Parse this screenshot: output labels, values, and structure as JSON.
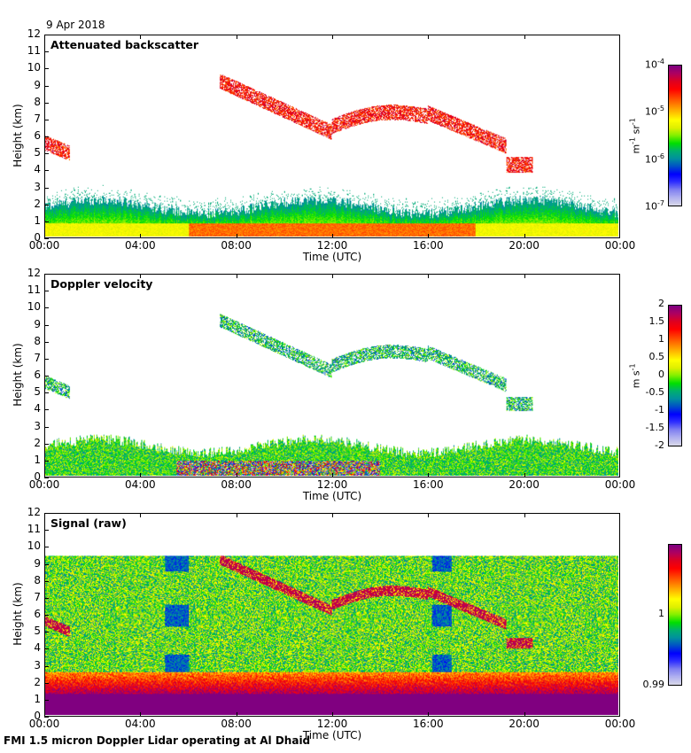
{
  "header": {
    "date": "9 Apr 2018"
  },
  "footer": {
    "caption": "FMI 1.5 micron Doppler Lidar operating at Al Dhaid"
  },
  "colormap": [
    "#d8d8ea",
    "#b0b0f0",
    "#8080f0",
    "#3030ff",
    "#0000ff",
    "#0050c8",
    "#0090a0",
    "#00b070",
    "#00e000",
    "#80f000",
    "#e0f000",
    "#ffff00",
    "#ffc000",
    "#ff8000",
    "#ff4000",
    "#ff0000",
    "#e00020",
    "#b00060",
    "#800080"
  ],
  "chart_data": [
    {
      "type": "heatmap",
      "title": "Attenuated backscatter",
      "xlabel": "Time (UTC)",
      "ylabel": "Height (km)",
      "xlim": [
        "00:00",
        "24:00"
      ],
      "ylim": [
        0,
        12
      ],
      "xticks": [
        "00:00",
        "04:00",
        "08:00",
        "12:00",
        "16:00",
        "20:00",
        "00:00"
      ],
      "yticks": [
        "0",
        "1",
        "2",
        "3",
        "4",
        "5",
        "6",
        "7",
        "8",
        "9",
        "10",
        "11",
        "12"
      ],
      "colorbar": {
        "scale": "log",
        "range": [
          1e-07,
          0.0001
        ],
        "ticks": [
          {
            "base": "10",
            "exp": "-4"
          },
          {
            "base": "10",
            "exp": "-5"
          },
          {
            "base": "10",
            "exp": "-6"
          },
          {
            "base": "10",
            "exp": "-7"
          }
        ],
        "unit": {
          "a": "m",
          "a_exp": "-1",
          "b": "sr",
          "b_exp": "-1"
        }
      },
      "features": {
        "boundary_layer_top_km": 2.0,
        "cloud_layers": [
          {
            "time_start": "00:00",
            "time_end": "01:00",
            "height_km": [
              4.5,
              6.0
            ]
          },
          {
            "time_start": "07:20",
            "time_end": "12:00",
            "height_km": [
              6.0,
              9.5
            ]
          },
          {
            "time_start": "12:00",
            "time_end": "20:30",
            "height_km": [
              4.2,
              8.0
            ]
          }
        ]
      }
    },
    {
      "type": "heatmap",
      "title": "Doppler velocity",
      "xlabel": "Time (UTC)",
      "ylabel": "Height (km)",
      "xlim": [
        "00:00",
        "24:00"
      ],
      "ylim": [
        0,
        12
      ],
      "xticks": [
        "00:00",
        "04:00",
        "08:00",
        "12:00",
        "16:00",
        "20:00",
        "00:00"
      ],
      "yticks": [
        "0",
        "1",
        "2",
        "3",
        "4",
        "5",
        "6",
        "7",
        "8",
        "9",
        "10",
        "11",
        "12"
      ],
      "colorbar": {
        "scale": "linear",
        "range": [
          -2,
          2
        ],
        "ticks": [
          "2",
          "1.5",
          "1",
          "0.5",
          "0",
          "-0.5",
          "-1",
          "-1.5",
          "-2"
        ],
        "unit": {
          "a": "m",
          "b": "s",
          "b_exp": "-1"
        }
      }
    },
    {
      "type": "heatmap",
      "title": "Signal (raw)",
      "xlabel": "Time (UTC)",
      "ylabel": "Height (km)",
      "xlim": [
        "00:00",
        "24:00"
      ],
      "ylim": [
        0,
        12
      ],
      "xticks": [
        "00:00",
        "04:00",
        "08:00",
        "12:00",
        "16:00",
        "20:00",
        "00:00"
      ],
      "yticks": [
        "0",
        "1",
        "2",
        "3",
        "4",
        "5",
        "6",
        "7",
        "8",
        "9",
        "10",
        "11",
        "12"
      ],
      "colorbar": {
        "scale": "linear",
        "range": [
          0.99,
          1.01
        ],
        "ticks": [
          "1",
          "0.99"
        ],
        "tick_values": [
          1.0,
          0.99
        ]
      },
      "features": {
        "data_top_km": 9.5
      }
    }
  ]
}
